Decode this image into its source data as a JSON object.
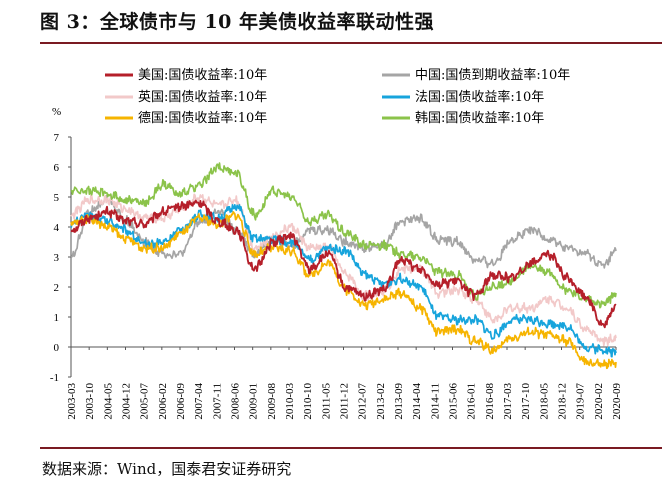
{
  "title": "图 3：全球债市与 10 年美债收益率联动性强",
  "source": "数据来源：Wind，国泰君安证券研究",
  "chart_data": {
    "type": "line",
    "title": "图 3：全球债市与 10 年美债收益率联动性强",
    "ylabel": "%",
    "xlabel": "",
    "ylim": [
      -1,
      7
    ],
    "yticks": [
      -1,
      0,
      1,
      2,
      3,
      4,
      5,
      6,
      7
    ],
    "grid": false,
    "legend_position": "top",
    "x_tick_labels": [
      "2003-03",
      "2003-10",
      "2004-05",
      "2004-12",
      "2005-07",
      "2006-02",
      "2006-09",
      "2007-04",
      "2007-11",
      "2008-06",
      "2009-01",
      "2009-08",
      "2010-03",
      "2010-10",
      "2011-05",
      "2011-12",
      "2012-07",
      "2013-02",
      "2013-09",
      "2014-04",
      "2014-11",
      "2015-06",
      "2016-01",
      "2016-08",
      "2017-03",
      "2017-10",
      "2018-05",
      "2018-12",
      "2019-07",
      "2020-02",
      "2020-09"
    ],
    "x": [
      2003.2,
      2003.8,
      2004.4,
      2005.0,
      2005.6,
      2006.2,
      2006.8,
      2007.4,
      2008.0,
      2008.6,
      2009.2,
      2009.8,
      2010.4,
      2011.0,
      2011.6,
      2012.2,
      2012.8,
      2013.4,
      2014.0,
      2014.6,
      2015.2,
      2015.8,
      2016.4,
      2017.0,
      2017.6,
      2018.2,
      2018.8,
      2019.4,
      2020.0,
      2020.6,
      2021.0
    ],
    "series": [
      {
        "name": "美国:国债收益率:10年",
        "color": "#b51f2a",
        "width": 1.9,
        "values": [
          3.9,
          4.3,
          4.5,
          4.2,
          4.1,
          4.5,
          4.7,
          4.8,
          4.2,
          3.9,
          2.6,
          3.5,
          3.7,
          2.6,
          3.1,
          1.95,
          1.7,
          1.9,
          2.9,
          2.6,
          2.1,
          2.2,
          1.7,
          2.4,
          2.3,
          2.8,
          3.1,
          2.3,
          1.7,
          0.7,
          1.4
        ]
      },
      {
        "name": "中国:国债到期收益率:10年",
        "color": "#a5a5a5",
        "width": 1.7,
        "values": [
          3.0,
          4.5,
          4.9,
          4.2,
          3.5,
          3.1,
          3.1,
          4.2,
          4.5,
          3.9,
          3.1,
          3.6,
          3.4,
          3.9,
          3.9,
          3.5,
          3.3,
          3.4,
          4.2,
          4.3,
          3.6,
          3.5,
          2.9,
          2.8,
          3.6,
          3.9,
          3.6,
          3.3,
          3.1,
          2.7,
          3.2
        ]
      },
      {
        "name": "英国:国债收益率:10年",
        "color": "#f2c9c9",
        "width": 1.7,
        "values": [
          4.4,
          4.9,
          4.9,
          4.6,
          4.3,
          4.3,
          4.6,
          5.0,
          4.7,
          4.9,
          3.3,
          3.7,
          4.0,
          3.3,
          3.3,
          2.4,
          1.7,
          1.9,
          2.6,
          2.6,
          1.8,
          1.9,
          1.6,
          0.9,
          1.3,
          1.3,
          1.6,
          1.3,
          0.6,
          0.2,
          0.3
        ]
      },
      {
        "name": "法国:国债收益率:10年",
        "color": "#17a4dc",
        "width": 1.7,
        "values": [
          4.1,
          4.4,
          4.2,
          3.9,
          3.4,
          3.5,
          3.9,
          4.4,
          4.3,
          4.7,
          3.6,
          3.6,
          3.5,
          2.9,
          3.3,
          3.2,
          2.4,
          2.1,
          2.3,
          2.0,
          1.0,
          0.9,
          0.9,
          0.4,
          0.9,
          0.9,
          0.8,
          0.7,
          0.0,
          -0.1,
          -0.2
        ]
      },
      {
        "name": "德国:国债收益率:10年",
        "color": "#f6b400",
        "width": 1.7,
        "values": [
          4.1,
          4.3,
          4.0,
          3.6,
          3.3,
          3.3,
          3.8,
          4.3,
          4.1,
          4.4,
          3.1,
          3.3,
          3.2,
          2.4,
          2.8,
          1.9,
          1.4,
          1.6,
          1.8,
          1.3,
          0.5,
          0.6,
          0.2,
          -0.1,
          0.3,
          0.5,
          0.4,
          0.2,
          -0.5,
          -0.6,
          -0.5
        ]
      },
      {
        "name": "韩国:国债收益率:10年",
        "color": "#8bc34a",
        "width": 1.7,
        "values": [
          5.2,
          5.2,
          5.1,
          4.9,
          4.8,
          5.4,
          5.1,
          5.4,
          6.0,
          5.8,
          4.4,
          5.2,
          5.0,
          4.2,
          4.4,
          3.8,
          3.4,
          3.4,
          3.1,
          3.0,
          2.5,
          2.4,
          1.7,
          2.0,
          2.2,
          2.7,
          2.5,
          1.9,
          1.6,
          1.4,
          1.8
        ]
      }
    ]
  }
}
